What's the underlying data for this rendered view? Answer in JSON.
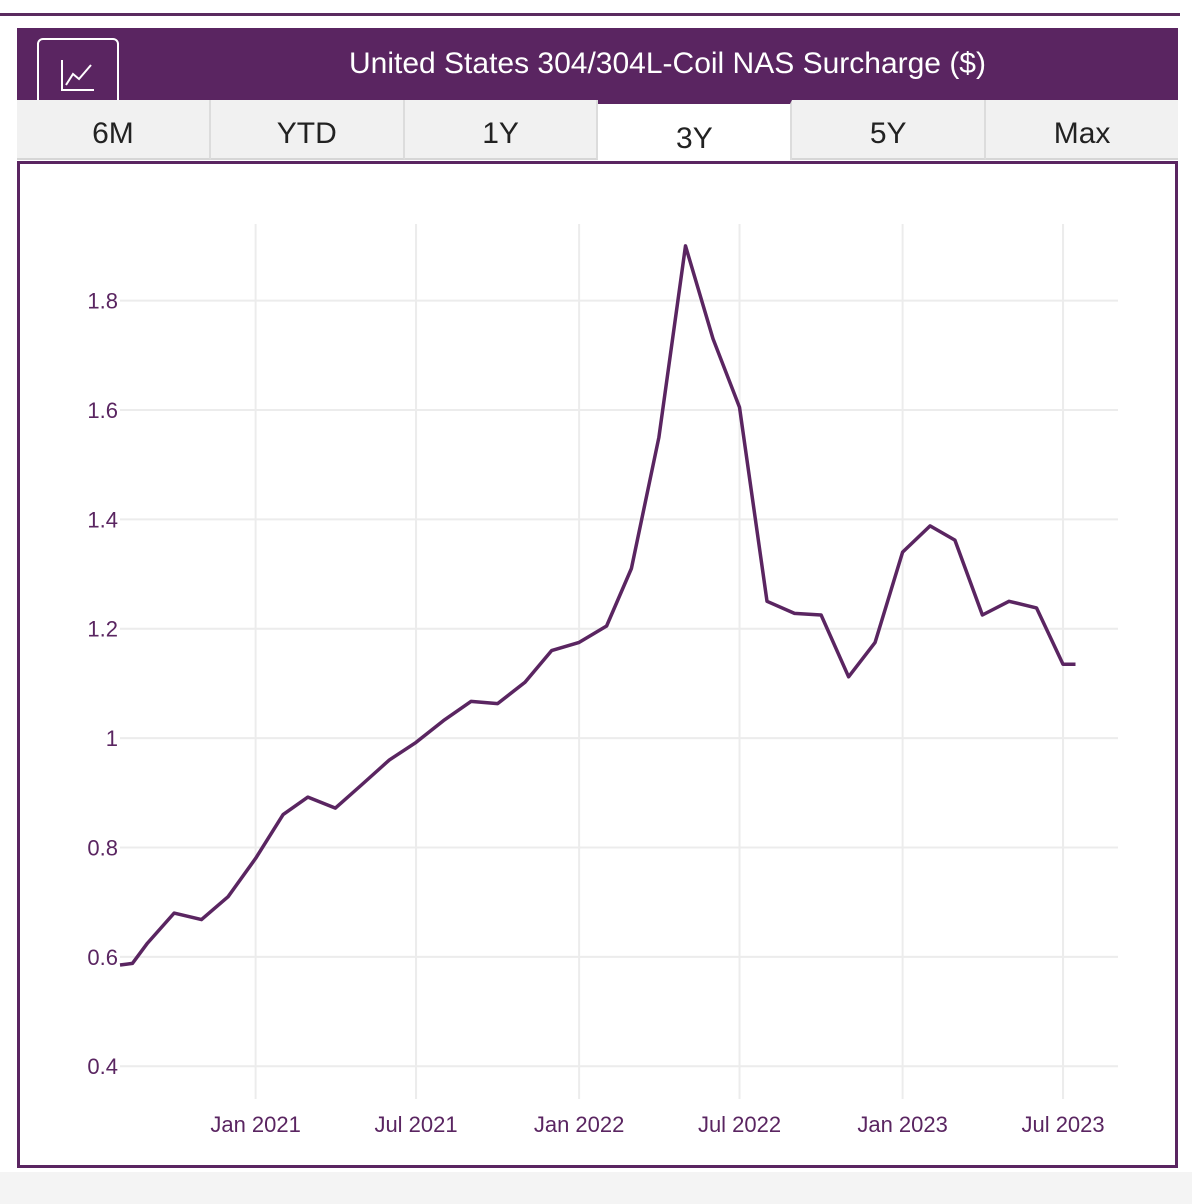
{
  "header": {
    "title": "United States 304/304L-Coil NAS Surcharge ($)",
    "chart_button_icon": "line-chart-icon"
  },
  "tabs": [
    {
      "label": "6M",
      "active": false
    },
    {
      "label": "YTD",
      "active": false
    },
    {
      "label": "1Y",
      "active": false
    },
    {
      "label": "3Y",
      "active": true
    },
    {
      "label": "5Y",
      "active": false
    },
    {
      "label": "Max",
      "active": false
    }
  ],
  "colors": {
    "brand": "#5a2561",
    "line": "#5a2561",
    "grid": "#ececec",
    "tick_text": "#5a2561"
  },
  "chart_data": {
    "type": "line",
    "title": "United States 304/304L-Coil NAS Surcharge ($)",
    "xlabel": "",
    "ylabel": "",
    "grid": true,
    "legend": "none",
    "ylim": [
      0.34,
      1.94
    ],
    "xlim": [
      "2020-08-01",
      "2023-09-01"
    ],
    "y_ticks": [
      0.4,
      0.6,
      0.8,
      1,
      1.2,
      1.4,
      1.6,
      1.8
    ],
    "y_tick_labels": [
      "0.4",
      "0.6",
      "0.8",
      "1",
      "1.2",
      "1.4",
      "1.6",
      "1.8"
    ],
    "x_ticks": [
      "2021-01-01",
      "2021-07-01",
      "2022-01-01",
      "2022-07-01",
      "2023-01-01",
      "2023-07-01"
    ],
    "x_tick_labels": [
      "Jan 2021",
      "Jul 2021",
      "Jan 2022",
      "Jul 2022",
      "Jan 2023",
      "Jul 2023"
    ],
    "series": [
      {
        "x": [
          "2020-08-01",
          "2020-08-15",
          "2020-09-01",
          "2020-10-01",
          "2020-11-01",
          "2020-12-01",
          "2021-01-01",
          "2021-02-01",
          "2021-03-01",
          "2021-04-01",
          "2021-05-01",
          "2021-06-01",
          "2021-07-01",
          "2021-08-01",
          "2021-09-01",
          "2021-10-01",
          "2021-11-01",
          "2021-12-01",
          "2022-01-01",
          "2022-02-01",
          "2022-03-01",
          "2022-04-01",
          "2022-05-01",
          "2022-06-01",
          "2022-07-01",
          "2022-08-01",
          "2022-09-01",
          "2022-10-01",
          "2022-11-01",
          "2022-12-01",
          "2023-01-01",
          "2023-02-01",
          "2023-03-01",
          "2023-04-01",
          "2023-05-01",
          "2023-06-01",
          "2023-07-01",
          "2023-07-15"
        ],
        "values": [
          0.585,
          0.588,
          0.625,
          0.68,
          0.668,
          0.71,
          0.78,
          0.86,
          0.892,
          0.872,
          0.915,
          0.96,
          0.992,
          1.032,
          1.067,
          1.063,
          1.102,
          1.16,
          1.175,
          1.205,
          1.31,
          1.55,
          1.9,
          1.73,
          1.605,
          1.25,
          1.228,
          1.225,
          1.112,
          1.175,
          1.34,
          1.388,
          1.362,
          1.225,
          1.25,
          1.238,
          1.135,
          1.135
        ]
      }
    ]
  }
}
